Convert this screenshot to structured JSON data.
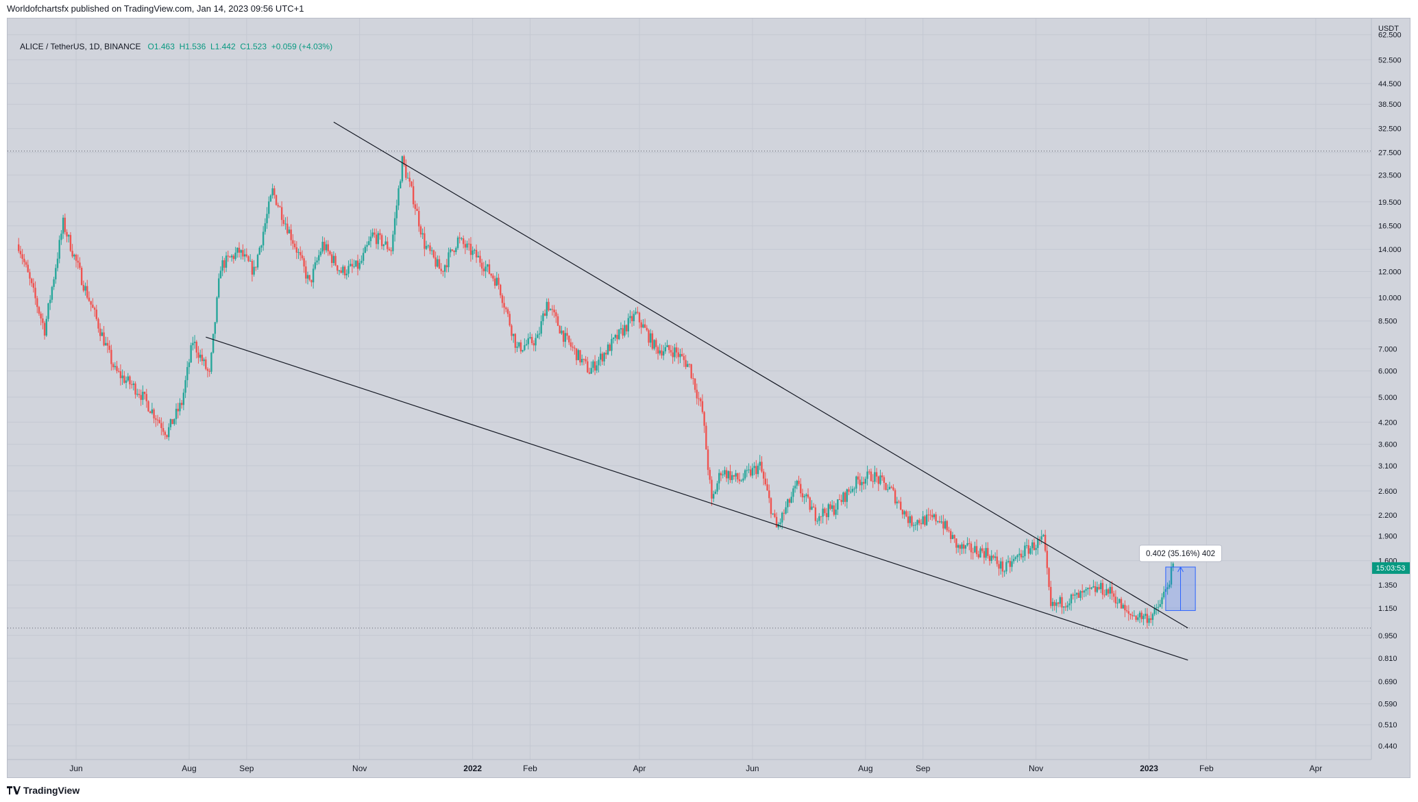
{
  "header": {
    "published": "Worldofchartsfx published on TradingView.com, Jan 14, 2023 09:56 UTC+1"
  },
  "legend": {
    "symbol": "ALICE / TetherUS, 1D, BINANCE",
    "open": "O1.463",
    "high": "H1.536",
    "low": "L1.442",
    "close": "C1.523",
    "change": "+0.059 (+4.03%)"
  },
  "footer": {
    "brand": "TradingView",
    "logo": "tradingview-logo-icon"
  },
  "colors": {
    "up": "#26a69a",
    "down": "#ef5350",
    "background": "#d1d4dc",
    "grid": "#c4c8d2",
    "measure": "#2962ff",
    "countdown": "#089981"
  },
  "chart_data": {
    "type": "candlestick",
    "price_scale": "log",
    "currency": "USDT",
    "y_ticks": [
      "62.500",
      "52.500",
      "44.500",
      "38.500",
      "32.500",
      "27.500",
      "23.500",
      "19.500",
      "16.500",
      "14.000",
      "12.000",
      "10.000",
      "8.500",
      "7.000",
      "6.000",
      "5.000",
      "4.200",
      "3.600",
      "3.100",
      "2.600",
      "2.200",
      "1.900",
      "1.600",
      "1.350",
      "1.150",
      "0.950",
      "0.810",
      "0.690",
      "0.590",
      "0.510",
      "0.440"
    ],
    "x_ticks": [
      "Jun",
      "Aug",
      "Sep",
      "Nov",
      "2022",
      "Feb",
      "Apr",
      "Jun",
      "Aug",
      "Sep",
      "Nov",
      "2023",
      "Feb",
      "Apr"
    ],
    "x_ticks_bold": [
      "2022",
      "2023"
    ],
    "x_range": [
      "2021-04-25",
      "2023-05-01"
    ],
    "price_path": [
      [
        "2021-05-01",
        14.5
      ],
      [
        "2021-05-15",
        8.0
      ],
      [
        "2021-05-25",
        16.8
      ],
      [
        "2021-06-05",
        11.0
      ],
      [
        "2021-06-22",
        6.0
      ],
      [
        "2021-07-05",
        5.2
      ],
      [
        "2021-07-20",
        3.9
      ],
      [
        "2021-07-28",
        4.8
      ],
      [
        "2021-08-03",
        7.4
      ],
      [
        "2021-08-12",
        5.8
      ],
      [
        "2021-08-18",
        12.5
      ],
      [
        "2021-08-28",
        13.8
      ],
      [
        "2021-09-05",
        12.0
      ],
      [
        "2021-09-15",
        21.0
      ],
      [
        "2021-09-20",
        18.0
      ],
      [
        "2021-09-28",
        14.0
      ],
      [
        "2021-10-05",
        11.0
      ],
      [
        "2021-10-12",
        14.5
      ],
      [
        "2021-10-22",
        12.0
      ],
      [
        "2021-11-01",
        12.5
      ],
      [
        "2021-11-08",
        15.5
      ],
      [
        "2021-11-18",
        14.0
      ],
      [
        "2021-11-24",
        26.0
      ],
      [
        "2021-11-30",
        20.0
      ],
      [
        "2021-12-06",
        14.5
      ],
      [
        "2021-12-15",
        12.0
      ],
      [
        "2021-12-24",
        15.0
      ],
      [
        "2022-01-05",
        13.0
      ],
      [
        "2022-01-15",
        11.0
      ],
      [
        "2022-01-25",
        7.0
      ],
      [
        "2022-02-05",
        7.5
      ],
      [
        "2022-02-10",
        9.7
      ],
      [
        "2022-02-20",
        7.5
      ],
      [
        "2022-03-05",
        6.0
      ],
      [
        "2022-03-15",
        7.0
      ],
      [
        "2022-03-30",
        8.9
      ],
      [
        "2022-04-10",
        7.0
      ],
      [
        "2022-04-20",
        6.9
      ],
      [
        "2022-04-28",
        6.2
      ],
      [
        "2022-05-05",
        4.5
      ],
      [
        "2022-05-10",
        2.4
      ],
      [
        "2022-05-15",
        3.0
      ],
      [
        "2022-05-25",
        2.8
      ],
      [
        "2022-06-05",
        3.1
      ],
      [
        "2022-06-14",
        2.0
      ],
      [
        "2022-06-25",
        2.7
      ],
      [
        "2022-07-05",
        2.2
      ],
      [
        "2022-07-15",
        2.3
      ],
      [
        "2022-07-28",
        2.8
      ],
      [
        "2022-08-05",
        2.9
      ],
      [
        "2022-08-15",
        2.6
      ],
      [
        "2022-08-25",
        2.1
      ],
      [
        "2022-09-10",
        2.15
      ],
      [
        "2022-09-20",
        1.75
      ],
      [
        "2022-10-05",
        1.7
      ],
      [
        "2022-10-15",
        1.5
      ],
      [
        "2022-10-25",
        1.7
      ],
      [
        "2022-11-05",
        1.85
      ],
      [
        "2022-11-09",
        1.15
      ],
      [
        "2022-11-15",
        1.2
      ],
      [
        "2022-11-25",
        1.25
      ],
      [
        "2022-12-05",
        1.32
      ],
      [
        "2022-12-12",
        1.28
      ],
      [
        "2022-12-20",
        1.1
      ],
      [
        "2023-01-01",
        1.08
      ],
      [
        "2023-01-05",
        1.12
      ],
      [
        "2023-01-10",
        1.3
      ],
      [
        "2023-01-14",
        1.523
      ]
    ],
    "lines": [
      {
        "name": "upper-trendline",
        "from": [
          "2021-10-18",
          34.0
        ],
        "to": [
          "2023-01-22",
          1.0
        ]
      },
      {
        "name": "lower-trendline",
        "from": [
          "2021-08-10",
          7.6
        ],
        "to": [
          "2023-01-22",
          0.8
        ]
      }
    ],
    "levels": [
      27.8,
      1.0
    ],
    "measure": {
      "label": "0.402 (35.16%) 402",
      "from": [
        "2023-01-10",
        1.13
      ],
      "to": [
        "2023-01-26",
        1.53
      ]
    },
    "countdown": "15:03:53"
  }
}
